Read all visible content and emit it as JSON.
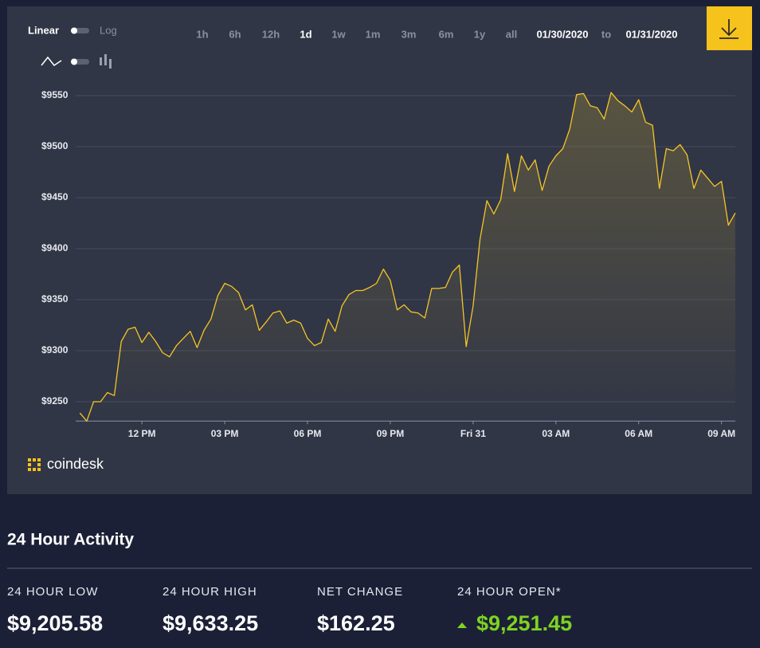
{
  "toolbar": {
    "scales": [
      "Linear",
      "Log"
    ],
    "active_scale": "Linear",
    "ranges": [
      "1h",
      "6h",
      "12h",
      "1d",
      "1w",
      "1m",
      "3m",
      "6m",
      "1y",
      "all"
    ],
    "active_range": "1d",
    "date_from": "01/30/2020",
    "date_sep": "to",
    "date_to": "01/31/2020"
  },
  "chart_data": {
    "type": "line",
    "color": "#f5c526",
    "grid": true,
    "x": [
      9.75,
      10,
      10.25,
      10.5,
      10.75,
      11,
      11.25,
      11.5,
      11.75,
      12,
      12.25,
      12.5,
      12.75,
      13,
      13.25,
      13.5,
      13.75,
      14,
      14.25,
      14.5,
      14.75,
      15,
      15.25,
      15.5,
      15.75,
      16,
      16.25,
      16.5,
      16.75,
      17,
      17.25,
      17.5,
      17.75,
      18,
      18.25,
      18.5,
      18.75,
      19,
      19.25,
      19.5,
      19.75,
      20,
      20.25,
      20.5,
      20.75,
      21,
      21.25,
      21.5,
      21.75,
      22,
      22.25,
      22.5,
      22.75,
      23,
      23.25,
      23.5,
      23.75,
      24,
      24.25,
      24.5,
      24.75,
      25,
      25.25,
      25.5,
      25.75,
      26,
      26.25,
      26.5,
      26.75,
      27,
      27.25,
      27.5,
      27.75,
      28,
      28.25,
      28.5,
      28.75,
      29,
      29.25,
      29.5,
      29.75,
      30,
      30.25,
      30.5,
      30.75,
      31,
      31.25,
      31.5,
      31.75,
      32,
      32.25,
      32.5,
      32.75,
      33,
      33.25,
      33.5
    ],
    "values": [
      9239,
      9231,
      9250,
      9250,
      9259,
      9256,
      9309,
      9321,
      9323,
      9308,
      9318,
      9309,
      9298,
      9294,
      9305,
      9312,
      9319,
      9303,
      9320,
      9331,
      9354,
      9366,
      9363,
      9357,
      9340,
      9345,
      9320,
      9328,
      9337,
      9339,
      9327,
      9330,
      9327,
      9312,
      9305,
      9308,
      9331,
      9319,
      9344,
      9355,
      9359,
      9359,
      9362,
      9366,
      9380,
      9369,
      9340,
      9345,
      9338,
      9337,
      9332,
      9361,
      9361,
      9362,
      9377,
      9384,
      9304,
      9344,
      9409,
      9447,
      9434,
      9448,
      9493,
      9456,
      9491,
      9477,
      9487,
      9457,
      9481,
      9491,
      9498,
      9517,
      9551,
      9552,
      9540,
      9538,
      9527,
      9553,
      9545,
      9540,
      9534,
      9546,
      9524,
      9521,
      9459,
      9498,
      9496,
      9502,
      9492,
      9459,
      9477,
      9469,
      9461,
      9466,
      9423,
      9435
    ],
    "xlim": [
      9.6,
      33.5
    ],
    "xticks": [
      {
        "value": 12,
        "label": "12 PM"
      },
      {
        "value": 15,
        "label": "03 PM"
      },
      {
        "value": 18,
        "label": "06 PM"
      },
      {
        "value": 21,
        "label": "09 PM"
      },
      {
        "value": 24,
        "label": "Fri 31"
      },
      {
        "value": 27,
        "label": "03 AM"
      },
      {
        "value": 30,
        "label": "06 AM"
      },
      {
        "value": 33,
        "label": "09 AM"
      }
    ],
    "ylim": [
      9231,
      9566
    ],
    "yticks": [
      {
        "value": 9250,
        "label": "$9250"
      },
      {
        "value": 9300,
        "label": "$9300"
      },
      {
        "value": 9350,
        "label": "$9350"
      },
      {
        "value": 9400,
        "label": "$9400"
      },
      {
        "value": 9450,
        "label": "$9450"
      },
      {
        "value": 9500,
        "label": "$9500"
      },
      {
        "value": 9550,
        "label": "$9550"
      }
    ]
  },
  "logo": "coindesk",
  "activity": {
    "title": "24 Hour Activity",
    "stats": [
      {
        "label": "24 HOUR LOW",
        "value": "$9,205.58",
        "color": "#ffffff"
      },
      {
        "label": "24 HOUR HIGH",
        "value": "$9,633.25",
        "color": "#ffffff"
      },
      {
        "label": "NET CHANGE",
        "value": "$162.25",
        "color": "#ffffff"
      },
      {
        "label": "24 HOUR OPEN*",
        "value": "$9,251.45",
        "color": "#7ed321",
        "trend": "up"
      }
    ]
  }
}
